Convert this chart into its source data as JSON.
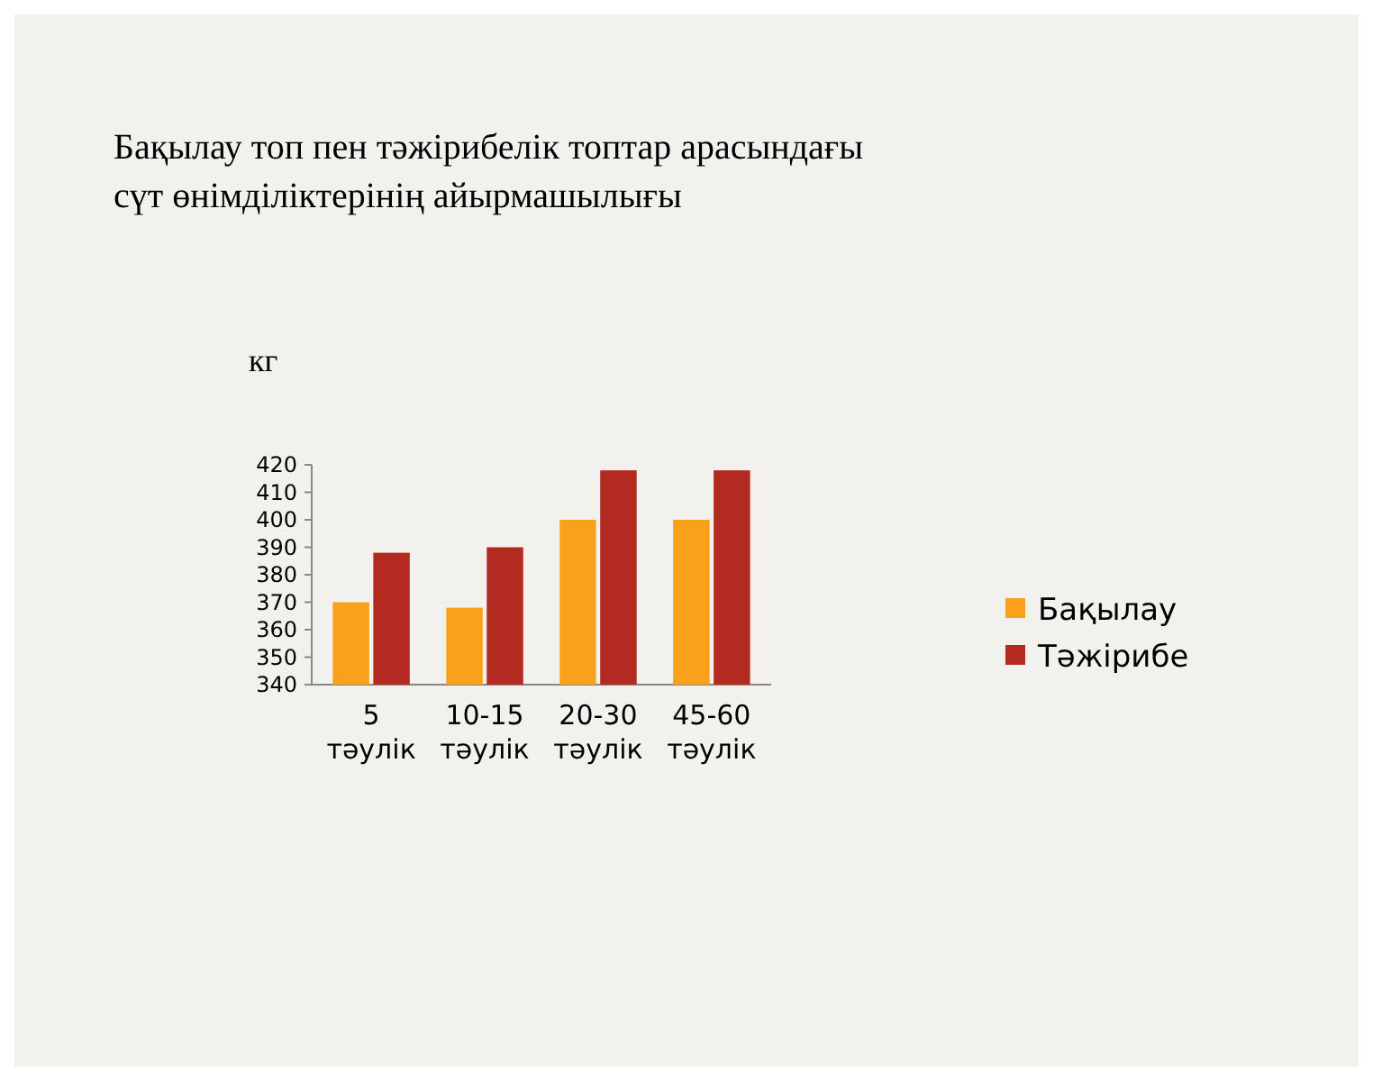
{
  "chart_data": {
    "type": "bar",
    "title": "Бақылау топ пен тәжірибелік топтар арасындағы сүт өнімділіктерінің айырмашылығы",
    "ylabel": "кг",
    "categories": [
      "5 тәулік",
      "10-15 тәулік",
      "20-30 тәулік",
      "45-60 тәулік"
    ],
    "series": [
      {
        "name": "Бақылау",
        "color": "#f9a11b",
        "values": [
          370,
          368,
          400,
          400
        ]
      },
      {
        "name": "Тәжірибе",
        "color": "#b22a20",
        "values": [
          388,
          390,
          418,
          418
        ]
      }
    ],
    "ylim": [
      340,
      420
    ],
    "yticks": [
      340,
      350,
      360,
      370,
      380,
      390,
      400,
      410,
      420
    ],
    "legend": "right"
  }
}
